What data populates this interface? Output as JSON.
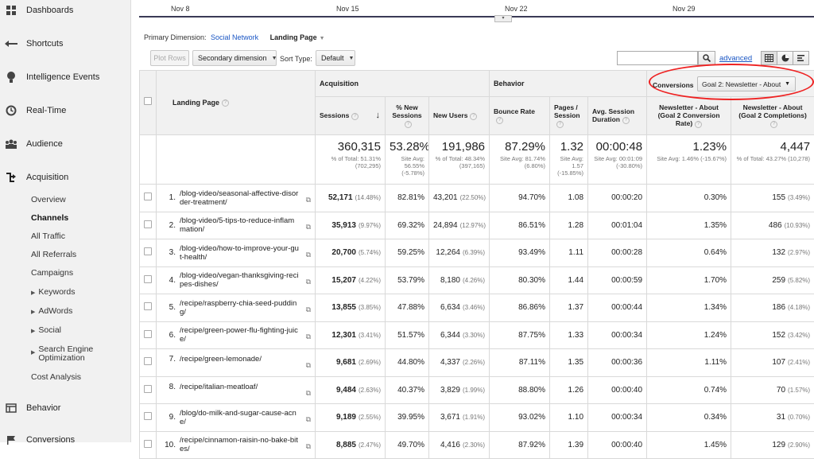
{
  "sidebar": {
    "items": [
      {
        "label": "Dashboards",
        "icon": "grid-icon"
      },
      {
        "label": "Shortcuts",
        "icon": "shortcut-arrow-icon"
      },
      {
        "label": "Intelligence Events",
        "icon": "lightbulb-icon"
      },
      {
        "label": "Real-Time",
        "icon": "clock-icon"
      },
      {
        "label": "Audience",
        "icon": "people-icon"
      },
      {
        "label": "Acquisition",
        "icon": "acquisition-arrows-icon"
      },
      {
        "label": "Behavior",
        "icon": "behavior-window-icon"
      },
      {
        "label": "Conversions",
        "icon": "flag-icon"
      }
    ],
    "acquisition_sub": [
      "Overview",
      "Channels",
      "All Traffic",
      "All Referrals",
      "Campaigns",
      "Keywords",
      "AdWords",
      "Social",
      "Search Engine Optimization",
      "Cost Analysis"
    ]
  },
  "timeline": {
    "labels": [
      "Nov 8",
      "Nov 15",
      "Nov 22",
      "Nov 29"
    ]
  },
  "primary_dimension": {
    "label": "Primary Dimension:",
    "option": "Social Network",
    "active": "Landing Page"
  },
  "toolbar": {
    "plot_rows": "Plot Rows",
    "secondary_dimension": "Secondary dimension",
    "sort_type_label": "Sort Type:",
    "sort_type_value": "Default",
    "search_value": "",
    "advanced": "advanced"
  },
  "table": {
    "groups": {
      "acquisition": "Acquisition",
      "behavior": "Behavior",
      "conversions": "Conversions",
      "goal_select": "Goal 2: Newsletter - About"
    },
    "columns": {
      "landing_page": "Landing Page",
      "sessions": "Sessions",
      "new_sessions": "% New Sessions",
      "new_users": "New Users",
      "bounce_rate": "Bounce Rate",
      "pages_session": "Pages / Session",
      "avg_duration": "Avg. Session Duration",
      "conv_rate": "Newsletter - About (Goal 2 Conversion Rate)",
      "completions": "Newsletter - About (Goal 2 Completions)"
    },
    "totals": {
      "sessions": "360,315",
      "sessions_sub": "% of Total: 51.31% (702,295)",
      "new_sessions": "53.28%",
      "new_sessions_sub": "Site Avg: 56.55% (-5.78%)",
      "new_users": "191,986",
      "new_users_sub": "% of Total: 48.34% (397,165)",
      "bounce_rate": "87.29%",
      "bounce_rate_sub": "Site Avg: 81.74% (6.80%)",
      "pages_session": "1.32",
      "pages_session_sub": "Site Avg: 1.57 (-15.85%)",
      "avg_duration": "00:00:48",
      "avg_duration_sub": "Site Avg: 00:01:09 (-30.80%)",
      "conv_rate": "1.23%",
      "conv_rate_sub": "Site Avg: 1.46% (-15.67%)",
      "completions": "4,447",
      "completions_sub": "% of Total: 43.27% (10,278)"
    },
    "rows": [
      {
        "n": "1.",
        "page": "/blog-video/seasonal-affective-disorder-treatment/",
        "sessions": "52,171",
        "sessions_pct": "(14.48%)",
        "new_sessions": "82.81%",
        "new_users": "43,201",
        "new_users_pct": "(22.50%)",
        "bounce": "94.70%",
        "pps": "1.08",
        "dur": "00:00:20",
        "conv": "0.30%",
        "comp": "155",
        "comp_pct": "(3.49%)"
      },
      {
        "n": "2.",
        "page": "/blog-video/5-tips-to-reduce-inflammation/",
        "sessions": "35,913",
        "sessions_pct": "(9.97%)",
        "new_sessions": "69.32%",
        "new_users": "24,894",
        "new_users_pct": "(12.97%)",
        "bounce": "86.51%",
        "pps": "1.28",
        "dur": "00:01:04",
        "conv": "1.35%",
        "comp": "486",
        "comp_pct": "(10.93%)"
      },
      {
        "n": "3.",
        "page": "/blog-video/how-to-improve-your-gut-health/",
        "sessions": "20,700",
        "sessions_pct": "(5.74%)",
        "new_sessions": "59.25%",
        "new_users": "12,264",
        "new_users_pct": "(6.39%)",
        "bounce": "93.49%",
        "pps": "1.11",
        "dur": "00:00:28",
        "conv": "0.64%",
        "comp": "132",
        "comp_pct": "(2.97%)"
      },
      {
        "n": "4.",
        "page": "/blog-video/vegan-thanksgiving-recipes-dishes/",
        "sessions": "15,207",
        "sessions_pct": "(4.22%)",
        "new_sessions": "53.79%",
        "new_users": "8,180",
        "new_users_pct": "(4.26%)",
        "bounce": "80.30%",
        "pps": "1.44",
        "dur": "00:00:59",
        "conv": "1.70%",
        "comp": "259",
        "comp_pct": "(5.82%)"
      },
      {
        "n": "5.",
        "page": "/recipe/raspberry-chia-seed-pudding/",
        "sessions": "13,855",
        "sessions_pct": "(3.85%)",
        "new_sessions": "47.88%",
        "new_users": "6,634",
        "new_users_pct": "(3.46%)",
        "bounce": "86.86%",
        "pps": "1.37",
        "dur": "00:00:44",
        "conv": "1.34%",
        "comp": "186",
        "comp_pct": "(4.18%)"
      },
      {
        "n": "6.",
        "page": "/recipe/green-power-flu-fighting-juice/",
        "sessions": "12,301",
        "sessions_pct": "(3.41%)",
        "new_sessions": "51.57%",
        "new_users": "6,344",
        "new_users_pct": "(3.30%)",
        "bounce": "87.75%",
        "pps": "1.33",
        "dur": "00:00:34",
        "conv": "1.24%",
        "comp": "152",
        "comp_pct": "(3.42%)"
      },
      {
        "n": "7.",
        "page": "/recipe/green-lemonade/",
        "sessions": "9,681",
        "sessions_pct": "(2.69%)",
        "new_sessions": "44.80%",
        "new_users": "4,337",
        "new_users_pct": "(2.26%)",
        "bounce": "87.11%",
        "pps": "1.35",
        "dur": "00:00:36",
        "conv": "1.11%",
        "comp": "107",
        "comp_pct": "(2.41%)"
      },
      {
        "n": "8.",
        "page": "/recipe/italian-meatloaf/",
        "sessions": "9,484",
        "sessions_pct": "(2.63%)",
        "new_sessions": "40.37%",
        "new_users": "3,829",
        "new_users_pct": "(1.99%)",
        "bounce": "88.80%",
        "pps": "1.26",
        "dur": "00:00:40",
        "conv": "0.74%",
        "comp": "70",
        "comp_pct": "(1.57%)"
      },
      {
        "n": "9.",
        "page": "/blog/do-milk-and-sugar-cause-acne/",
        "sessions": "9,189",
        "sessions_pct": "(2.55%)",
        "new_sessions": "39.95%",
        "new_users": "3,671",
        "new_users_pct": "(1.91%)",
        "bounce": "93.02%",
        "pps": "1.10",
        "dur": "00:00:34",
        "conv": "0.34%",
        "comp": "31",
        "comp_pct": "(0.70%)"
      },
      {
        "n": "10.",
        "page": "/recipe/cinnamon-raisin-no-bake-bites/",
        "sessions": "8,885",
        "sessions_pct": "(2.47%)",
        "new_sessions": "49.70%",
        "new_users": "4,416",
        "new_users_pct": "(2.30%)",
        "bounce": "87.92%",
        "pps": "1.39",
        "dur": "00:00:40",
        "conv": "1.45%",
        "comp": "129",
        "comp_pct": "(2.90%)"
      }
    ]
  }
}
